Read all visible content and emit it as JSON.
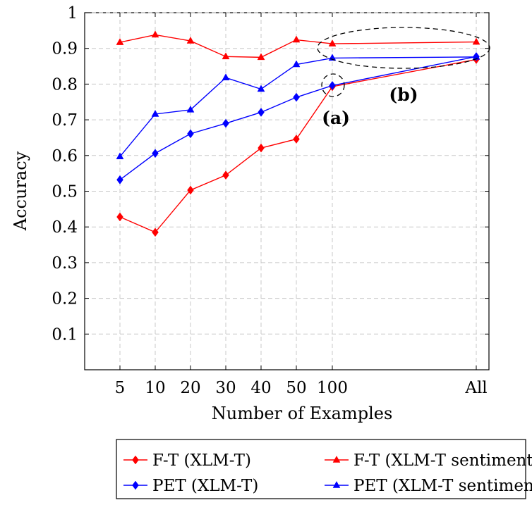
{
  "chart_data": {
    "type": "line",
    "xlabel": "Number of Examples",
    "ylabel": "Accuracy",
    "categories": [
      "5",
      "10",
      "20",
      "30",
      "40",
      "50",
      "100",
      "All"
    ],
    "y_ticks": [
      "0.1",
      "0.2",
      "0.3",
      "0.4",
      "0.5",
      "0.6",
      "0.7",
      "0.8",
      "0.9",
      "1"
    ],
    "ylim": [
      0,
      1
    ],
    "grid": true,
    "legend_position": "bottom",
    "series": [
      {
        "name": "F-T (XLM-T)",
        "color": "#ff0000",
        "marker": "diamond",
        "values": [
          0.428,
          0.385,
          0.503,
          0.545,
          0.621,
          0.646,
          0.793,
          0.869
        ]
      },
      {
        "name": "F-T (XLM-T sentiment)",
        "color": "#ff0000",
        "marker": "triangle",
        "values": [
          0.917,
          0.938,
          0.921,
          0.877,
          0.875,
          0.924,
          0.913,
          0.918
        ]
      },
      {
        "name": "PET (XLM-T)",
        "color": "#0000ff",
        "marker": "diamond",
        "values": [
          0.532,
          0.606,
          0.661,
          0.69,
          0.721,
          0.763,
          0.796,
          0.877
        ]
      },
      {
        "name": "PET (XLM-T sentiment)",
        "color": "#0000ff",
        "marker": "triangle",
        "values": [
          0.597,
          0.716,
          0.728,
          0.818,
          0.786,
          0.855,
          0.873,
          0.876
        ]
      }
    ],
    "annotations": [
      {
        "label": "(a)",
        "category": "100"
      },
      {
        "label": "(b)",
        "category": "All"
      }
    ]
  }
}
